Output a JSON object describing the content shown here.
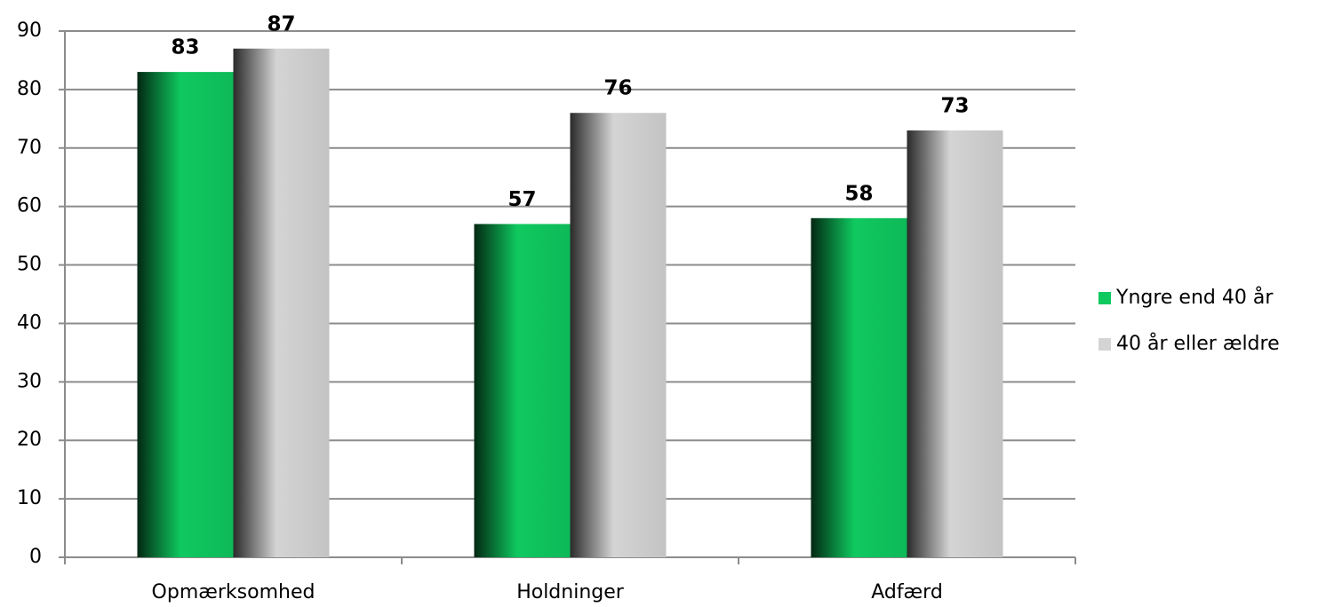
{
  "chart_data": {
    "type": "bar",
    "categories": [
      "Opmærksomhed",
      "Holdninger",
      "Adfærd"
    ],
    "series": [
      {
        "name": "Yngre end 40 år",
        "color": "#0fc95f",
        "values": [
          83,
          57,
          58
        ]
      },
      {
        "name": "40 år eller ældre",
        "color": "#d4d4d4",
        "values": [
          87,
          76,
          73
        ]
      }
    ],
    "ylim": [
      0,
      90
    ],
    "yticks": [
      0,
      10,
      20,
      30,
      40,
      50,
      60,
      70,
      80,
      90
    ],
    "grid": true,
    "legend": "right"
  }
}
